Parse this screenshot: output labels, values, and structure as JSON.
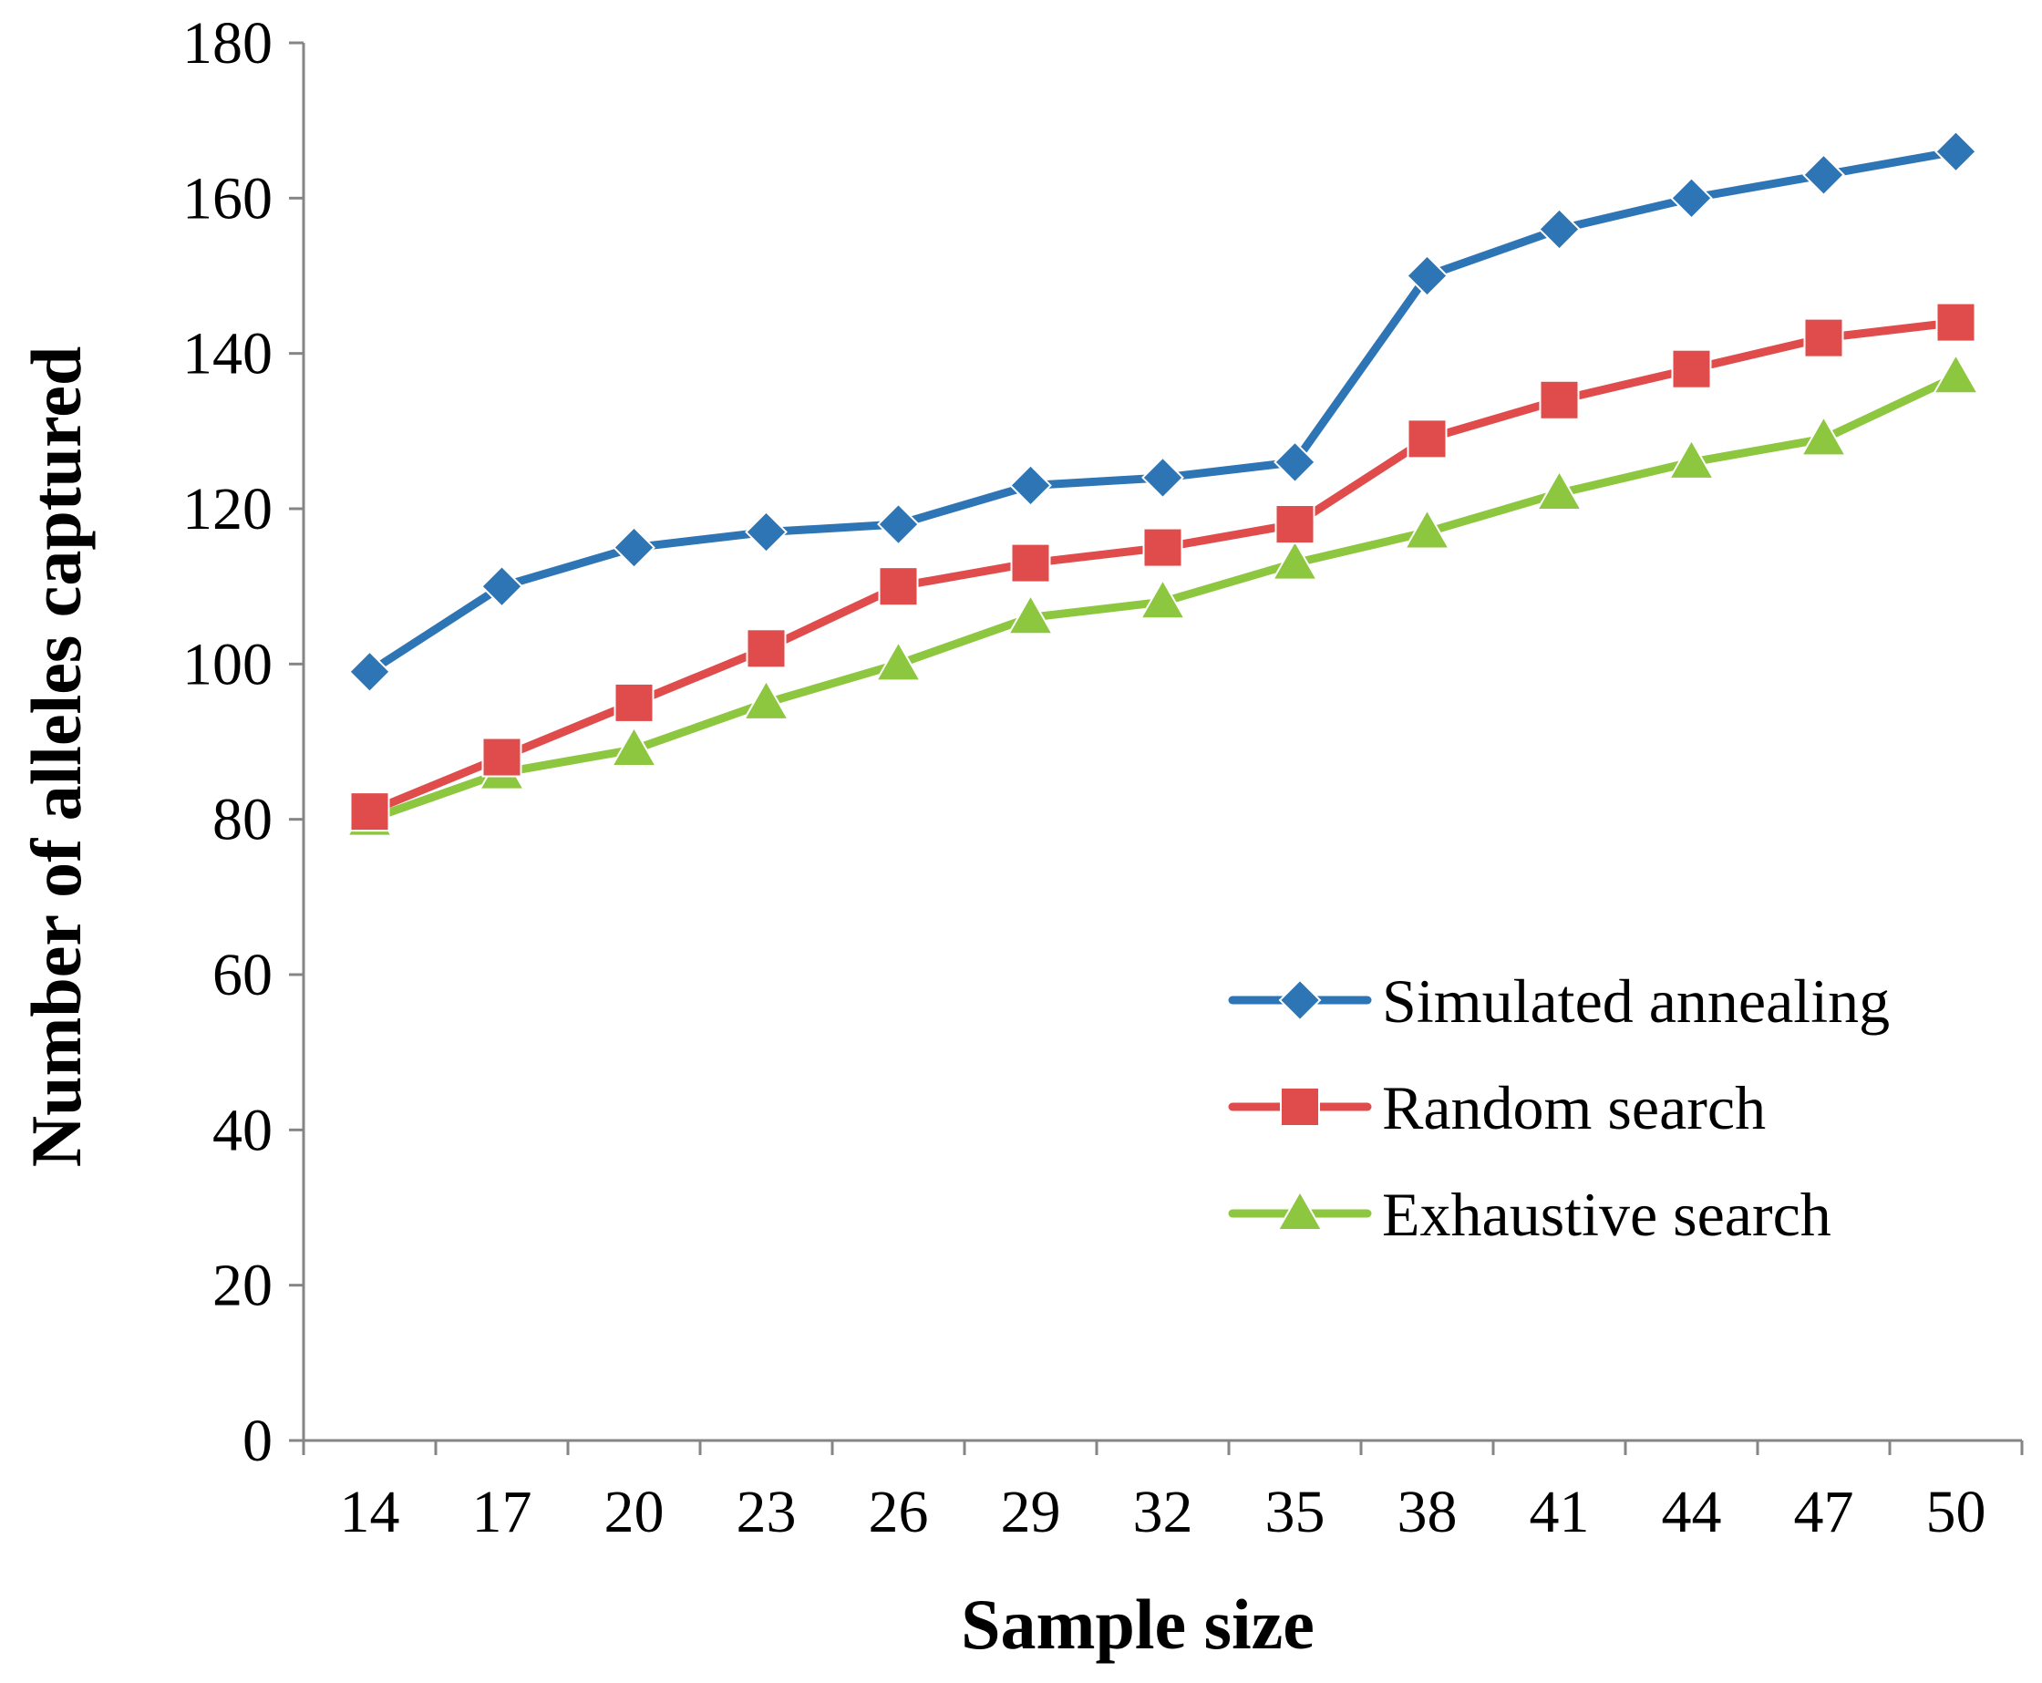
{
  "chart_data": {
    "type": "line",
    "title": "",
    "xlabel": "Sample size",
    "ylabel": "Number of alleles captured",
    "categories": [
      "14",
      "17",
      "20",
      "23",
      "26",
      "29",
      "32",
      "35",
      "38",
      "41",
      "44",
      "47",
      "50"
    ],
    "ylim": [
      0,
      180
    ],
    "yticks": [
      "0",
      "20",
      "40",
      "60",
      "80",
      "100",
      "120",
      "140",
      "160",
      "180"
    ],
    "grid": false,
    "legend_position": "right-middle",
    "series": [
      {
        "name": "Simulated annealing",
        "marker": "diamond",
        "color": "#2e75b6",
        "values": [
          99,
          110,
          115,
          117,
          118,
          123,
          124,
          126,
          150,
          156,
          160,
          163,
          166
        ]
      },
      {
        "name": "Random search",
        "marker": "square",
        "color": "#e04b4b",
        "values": [
          81,
          88,
          95,
          102,
          110,
          113,
          115,
          118,
          129,
          134,
          138,
          142,
          144
        ]
      },
      {
        "name": "Exhaustive search",
        "marker": "triangle",
        "color": "#8dc63f",
        "values": [
          80,
          86,
          89,
          95,
          100,
          106,
          108,
          113,
          117,
          122,
          126,
          129,
          137
        ]
      }
    ]
  }
}
